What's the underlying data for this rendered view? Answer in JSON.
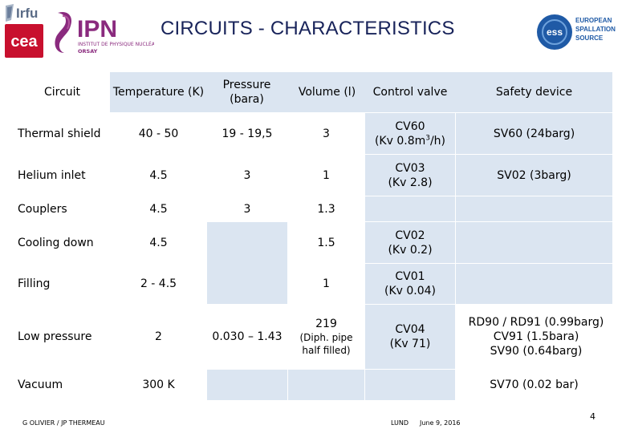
{
  "title": "CIRCUITS - CHARACTERISTICS",
  "logos": {
    "irfu": "Irfu",
    "cea": "cea",
    "ipn": "IPN",
    "ipn_sub1": "INSTITUT DE PHYSIQUE NUCLÉAIRE",
    "ipn_sub2": "ORSAY",
    "ess_line1": "EUROPEAN",
    "ess_line2": "SPALLATION",
    "ess_line3": "SOURCE"
  },
  "table": {
    "headers": {
      "circuit": "Circuit",
      "temperature": "Temperature (K)",
      "pressure": "Pressure (bara)",
      "volume": "Volume (l)",
      "control_valve": "Control valve",
      "safety_device": "Safety device"
    },
    "rows": {
      "thermal_shield": {
        "circuit": "Thermal shield",
        "temperature": "40 - 50",
        "pressure": "19 - 19,5",
        "volume": "3",
        "cv_line1": "CV60",
        "cv_line2_pre": "(Kv 0.8m",
        "cv_sup": "3",
        "cv_line2_post": "/h)",
        "safety": "SV60 (24barg)"
      },
      "helium_inlet": {
        "circuit": "Helium inlet",
        "temperature": "4.5",
        "pressure": "3",
        "volume": "1",
        "cv_line1": "CV03",
        "cv_line2": "(Kv 2.8)",
        "safety": "SV02 (3barg)"
      },
      "couplers": {
        "circuit": "Couplers",
        "temperature": "4.5",
        "pressure": "3",
        "volume": "1.3"
      },
      "cooling_down": {
        "circuit": "Cooling down",
        "temperature": "4.5",
        "volume": "1.5",
        "cv_line1": "CV02",
        "cv_line2": "(Kv 0.2)"
      },
      "filling": {
        "circuit": "Filling",
        "temperature": "2 - 4.5",
        "volume": "1",
        "cv_line1": "CV01",
        "cv_line2": "(Kv 0.04)"
      },
      "low_pressure": {
        "circuit": "Low pressure",
        "temperature": "2",
        "pressure": "0.030 – 1.43",
        "volume_line1": "219",
        "volume_line2": "(Diph. pipe",
        "volume_line3": "half filled)",
        "cv_line1": "CV04",
        "cv_line2": "(Kv 71)",
        "safety_line1": "RD90 / RD91 (0.99barg)",
        "safety_line2": "CV91 (1.5bara)",
        "safety_line3": "SV90 (0.64barg)"
      },
      "vacuum": {
        "circuit": "Vacuum",
        "temperature": "300 K",
        "safety": "SV70 (0.02 bar)"
      }
    }
  },
  "footer": {
    "author": "G OLIVIER / JP THERMEAU",
    "place": "LUND",
    "date": "June 9, 2016",
    "page": "4"
  },
  "colors": {
    "shade": "#dbe5f1",
    "title": "#18235a",
    "cea_red": "#c8102e",
    "ipn_purple": "#8a2a7e",
    "ess_blue": "#1f5aa6"
  }
}
